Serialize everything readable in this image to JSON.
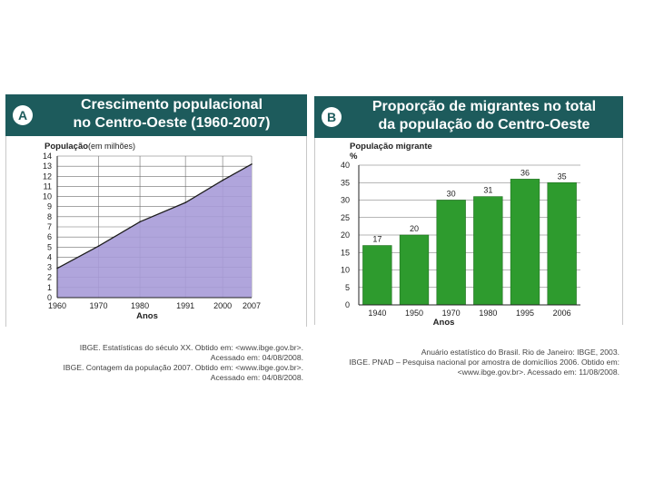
{
  "colors": {
    "header_bg": "#1d5b5c",
    "area_fill": "#a79bd8",
    "area_line": "#1e1e1e",
    "bar_fill": "#2e9b2e",
    "grid": "#6f6f6f"
  },
  "panel_a": {
    "letter": "A",
    "title_line1": "Crescimento populacional",
    "title_line2": "no Centro-Oeste (1960-2007)",
    "sources": [
      "IBGE. Estatísticas do século XX. Obtido em: <www.ibge.gov.br>.",
      "Acessado em: 04/08/2008.",
      "IBGE. Contagem da população 2007. Obtido em: <www.ibge.gov.br>.",
      "Acessado em: 04/08/2008."
    ]
  },
  "panel_b": {
    "letter": "B",
    "title_line1": "Proporção de migrantes no total",
    "title_line2": "da população do Centro-Oeste",
    "sources": [
      "Anuário estatístico do Brasil. Rio de Janeiro: IBGE, 2003.",
      "IBGE. PNAD – Pesquisa nacional por amostra de domicílios 2006. Obtido em:",
      "<www.ibge.gov.br>. Acessado em: 11/08/2008."
    ]
  },
  "chart_data": [
    {
      "type": "area",
      "title": "Crescimento populacional no Centro-Oeste (1960-2007)",
      "ylabel": "População",
      "ylabel_unit": "(em milhões)",
      "xlabel": "Anos",
      "x": [
        1960,
        1970,
        1980,
        1991,
        2000,
        2007
      ],
      "x_tick_labels": [
        "1960",
        "1970",
        "1980",
        "1991",
        "2000",
        "2007"
      ],
      "y": [
        2.9,
        5.1,
        7.5,
        9.4,
        11.6,
        13.2
      ],
      "ylim": [
        0,
        14
      ],
      "y_ticks": [
        0,
        1,
        2,
        3,
        4,
        5,
        6,
        7,
        8,
        9,
        10,
        11,
        12,
        13,
        14
      ],
      "grid": true
    },
    {
      "type": "bar",
      "title": "Proporção de migrantes no total da população do Centro-Oeste",
      "ylabel": "População migrante",
      "y_unit": "%",
      "xlabel": "Anos",
      "categories": [
        "1940",
        "1950",
        "1970",
        "1980",
        "1995",
        "2006"
      ],
      "values": [
        17,
        20,
        30,
        31,
        36,
        35
      ],
      "value_labels": [
        "17",
        "20",
        "30",
        "31",
        "36",
        "35"
      ],
      "ylim": [
        0,
        40
      ],
      "y_ticks": [
        0,
        5,
        10,
        15,
        20,
        25,
        30,
        35,
        40
      ],
      "grid": true
    }
  ]
}
